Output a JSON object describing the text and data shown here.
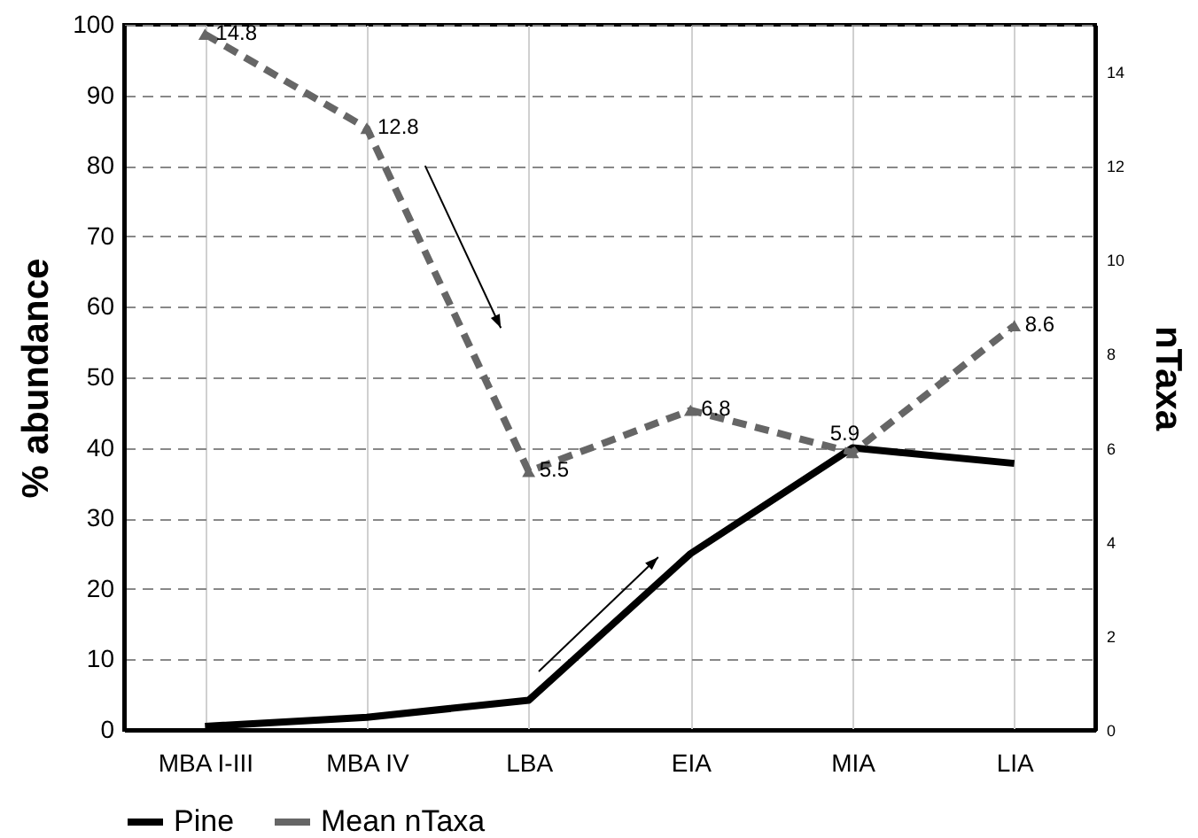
{
  "chart_data": {
    "type": "line",
    "categories": [
      "MBA I-III",
      "MBA IV",
      "LBA",
      "EIA",
      "MIA",
      "LIA"
    ],
    "ylabel": "% abundance",
    "y2label": "nTaxa",
    "ylim": [
      0,
      100
    ],
    "yticks": [
      0,
      10,
      20,
      30,
      40,
      50,
      60,
      70,
      80,
      90,
      100
    ],
    "y2lim": [
      0,
      15
    ],
    "y2ticks": [
      0,
      2,
      4,
      6,
      8,
      10,
      12,
      14
    ],
    "grid": true,
    "legend": "bottom",
    "series": [
      {
        "name": "Pine",
        "color": "#000000",
        "values": [
          0.5,
          1.8,
          4.2,
          25,
          40,
          37.8
        ],
        "line_style": "solid",
        "marker": "none"
      },
      {
        "name": "Mean nTaxa",
        "color": "#666666",
        "values": [
          14.8,
          12.8,
          5.5,
          6.8,
          5.9,
          8.6
        ],
        "axis": "y2",
        "line_style": "dashed",
        "marker": "triangle",
        "value_labels": [
          "14.8",
          "12.8",
          "5.5",
          "6.8",
          "5.9",
          "8.6"
        ]
      }
    ]
  }
}
